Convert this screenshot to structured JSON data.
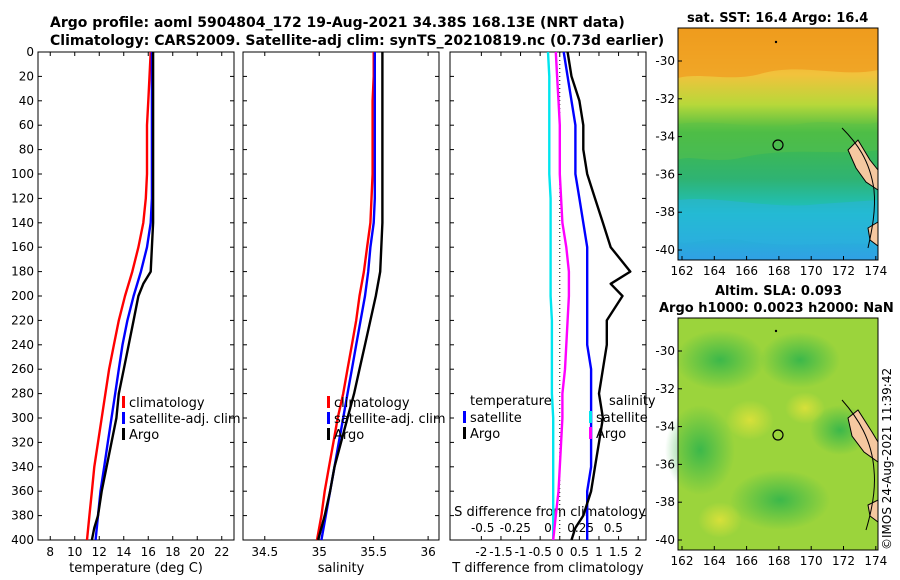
{
  "header": {
    "line1": "Argo profile: aoml 5904804_172 19-Aug-2021 34.38S 168.13E (NRT data)",
    "line2": "Climatology: CARS2009. Satellite-adj clim: synTS_20210819.nc (0.73d earlier)"
  },
  "maps": {
    "sst_title": "sat. SST: 16.4 Argo: 16.4",
    "sla_title1": "Altim. SLA: 0.093",
    "sla_title2": "Argo h1000: 0.0023 h2000: NaN",
    "lat_ticks": [
      "-30",
      "-32",
      "-34",
      "-36",
      "-38",
      "-40"
    ],
    "lon_ticks": [
      "162",
      "164",
      "166",
      "168",
      "170",
      "172",
      "174"
    ]
  },
  "timestamp": "©IMOS 24-Aug-2021 11:39:42",
  "colors": {
    "climatology": "#ff0000",
    "satellite": "#0000ff",
    "argo": "#000000",
    "s_satellite": "#00e5ee",
    "s_argo": "#ff00ff"
  },
  "chart_data": [
    {
      "type": "line",
      "xlabel": "temperature (deg C)",
      "ylabel": "",
      "xlim": [
        7,
        23
      ],
      "ylim": [
        400,
        0
      ],
      "xticks": [
        "8",
        "10",
        "12",
        "14",
        "16",
        "18",
        "20",
        "22"
      ],
      "yticks": [
        "0",
        "20",
        "40",
        "60",
        "80",
        "100",
        "120",
        "140",
        "160",
        "180",
        "200",
        "220",
        "240",
        "260",
        "280",
        "300",
        "320",
        "340",
        "360",
        "380",
        "400"
      ],
      "legend": [
        "climatology",
        "satellite-adj. clim",
        "Argo"
      ],
      "series": [
        {
          "name": "climatology",
          "color": "climatology",
          "depth": [
            0,
            20,
            40,
            60,
            80,
            100,
            120,
            140,
            160,
            180,
            200,
            220,
            240,
            260,
            280,
            300,
            320,
            340,
            360,
            380,
            400
          ],
          "values": [
            16.2,
            16.1,
            16.0,
            15.9,
            15.9,
            15.9,
            15.8,
            15.6,
            15.2,
            14.7,
            14.1,
            13.6,
            13.2,
            12.8,
            12.5,
            12.2,
            11.9,
            11.6,
            11.4,
            11.2,
            11.0
          ]
        },
        {
          "name": "satellite-adj. clim",
          "color": "satellite",
          "depth": [
            0,
            20,
            40,
            60,
            80,
            100,
            120,
            140,
            160,
            180,
            200,
            220,
            240,
            260,
            280,
            300,
            320,
            340,
            360,
            380,
            400
          ],
          "values": [
            16.3,
            16.3,
            16.3,
            16.3,
            16.3,
            16.3,
            16.3,
            16.2,
            15.9,
            15.4,
            14.8,
            14.3,
            13.9,
            13.6,
            13.3,
            13.0,
            12.7,
            12.4,
            12.1,
            11.9,
            11.7
          ]
        },
        {
          "name": "Argo",
          "color": "argo",
          "depth": [
            0,
            20,
            40,
            60,
            80,
            100,
            120,
            140,
            160,
            180,
            190,
            200,
            220,
            240,
            260,
            280,
            300,
            320,
            340,
            360,
            380,
            390,
            400
          ],
          "values": [
            16.4,
            16.4,
            16.4,
            16.4,
            16.4,
            16.4,
            16.4,
            16.4,
            16.3,
            16.2,
            15.6,
            15.2,
            14.8,
            14.4,
            14.0,
            13.6,
            13.4,
            13.0,
            12.6,
            12.2,
            11.9,
            11.6,
            11.4
          ]
        }
      ]
    },
    {
      "type": "line",
      "xlabel": "salinity",
      "xlim": [
        34.3,
        36.1
      ],
      "ylim": [
        400,
        0
      ],
      "xticks": [
        "34.5",
        "35",
        "35.5",
        "36"
      ],
      "legend": [
        "climatology",
        "satellite-adj. clim",
        "Argo"
      ],
      "series": [
        {
          "name": "climatology",
          "color": "climatology",
          "depth": [
            0,
            20,
            40,
            60,
            80,
            100,
            120,
            140,
            160,
            180,
            200,
            220,
            240,
            260,
            280,
            300,
            320,
            340,
            360,
            380,
            400
          ],
          "values": [
            35.5,
            35.5,
            35.49,
            35.49,
            35.49,
            35.49,
            35.48,
            35.47,
            35.44,
            35.41,
            35.37,
            35.34,
            35.3,
            35.26,
            35.22,
            35.17,
            35.13,
            35.09,
            35.05,
            35.02,
            34.98
          ]
        },
        {
          "name": "satellite-adj. clim",
          "color": "satellite",
          "depth": [
            0,
            20,
            40,
            60,
            80,
            100,
            120,
            140,
            160,
            180,
            200,
            220,
            240,
            260,
            280,
            300,
            320,
            340,
            360,
            380,
            400
          ],
          "values": [
            35.51,
            35.51,
            35.51,
            35.51,
            35.51,
            35.51,
            35.51,
            35.5,
            35.47,
            35.45,
            35.42,
            35.38,
            35.34,
            35.3,
            35.26,
            35.22,
            35.18,
            35.14,
            35.1,
            35.06,
            35.02
          ]
        },
        {
          "name": "Argo",
          "color": "argo",
          "depth": [
            0,
            20,
            40,
            60,
            80,
            100,
            120,
            140,
            160,
            180,
            200,
            220,
            240,
            260,
            280,
            300,
            320,
            340,
            360,
            380,
            400
          ],
          "values": [
            35.58,
            35.58,
            35.58,
            35.58,
            35.58,
            35.58,
            35.58,
            35.58,
            35.57,
            35.56,
            35.52,
            35.47,
            35.42,
            35.37,
            35.32,
            35.26,
            35.2,
            35.14,
            35.1,
            35.05,
            34.99
          ]
        }
      ]
    },
    {
      "type": "line",
      "xlabel": "T difference from climatology",
      "xlim": [
        -2.8,
        2.2
      ],
      "s_xlabel": "S difference from climatology",
      "s_xlim": [
        -0.75,
        0.75
      ],
      "ylim": [
        400,
        0
      ],
      "xticks": [
        "-2",
        "-1.5",
        "-1",
        "-0.5",
        "0",
        "0.5",
        "1",
        "1.5",
        "2"
      ],
      "s_xticks": [
        "-0.5",
        "-0.25",
        "0",
        "0.25",
        "0.5"
      ],
      "legend_t": {
        "title": "temperature",
        "items": [
          "satellite",
          "Argo"
        ]
      },
      "legend_s": {
        "title": "salinity",
        "items": [
          "satellite",
          "Argo"
        ]
      },
      "series": [
        {
          "name": "T satellite",
          "axis": "t",
          "color": "satellite",
          "depth": [
            0,
            20,
            40,
            60,
            80,
            100,
            120,
            140,
            160,
            180,
            200,
            220,
            240,
            260,
            280,
            300,
            320,
            340,
            360,
            380,
            400
          ],
          "values": [
            0.1,
            0.2,
            0.3,
            0.4,
            0.4,
            0.4,
            0.5,
            0.6,
            0.7,
            0.7,
            0.7,
            0.7,
            0.7,
            0.8,
            0.8,
            0.8,
            0.8,
            0.8,
            0.7,
            0.7,
            0.7
          ]
        },
        {
          "name": "T Argo",
          "axis": "t",
          "color": "argo",
          "depth": [
            0,
            20,
            40,
            60,
            80,
            100,
            120,
            140,
            160,
            180,
            190,
            200,
            220,
            240,
            260,
            280,
            300,
            320,
            340,
            360,
            380,
            390,
            400
          ],
          "values": [
            0.2,
            0.3,
            0.5,
            0.6,
            0.6,
            0.7,
            0.9,
            1.1,
            1.3,
            1.8,
            1.3,
            1.6,
            1.2,
            1.2,
            1.1,
            1.0,
            1.1,
            1.0,
            0.9,
            0.8,
            0.6,
            0.4,
            0.3
          ]
        },
        {
          "name": "S satellite",
          "axis": "s",
          "color": "s_satellite",
          "depth": [
            0,
            20,
            40,
            60,
            80,
            100,
            120,
            140,
            160,
            180,
            200,
            220,
            240,
            260,
            280,
            300,
            320,
            340,
            360,
            380,
            400
          ],
          "values": [
            0.0,
            0.01,
            0.01,
            0.01,
            0.01,
            0.01,
            0.02,
            0.02,
            0.02,
            0.02,
            0.02,
            0.03,
            0.03,
            0.03,
            0.03,
            0.04,
            0.04,
            0.04,
            0.04,
            0.04,
            0.04
          ]
        },
        {
          "name": "S Argo",
          "axis": "s",
          "color": "s_argo",
          "depth": [
            0,
            20,
            40,
            60,
            80,
            100,
            120,
            140,
            160,
            180,
            200,
            220,
            240,
            260,
            280,
            300,
            320,
            340,
            360,
            380,
            400
          ],
          "values": [
            0.06,
            0.07,
            0.08,
            0.09,
            0.09,
            0.09,
            0.1,
            0.11,
            0.14,
            0.16,
            0.16,
            0.15,
            0.14,
            0.13,
            0.11,
            0.11,
            0.1,
            0.09,
            0.08,
            0.06,
            0.04
          ]
        }
      ]
    }
  ]
}
